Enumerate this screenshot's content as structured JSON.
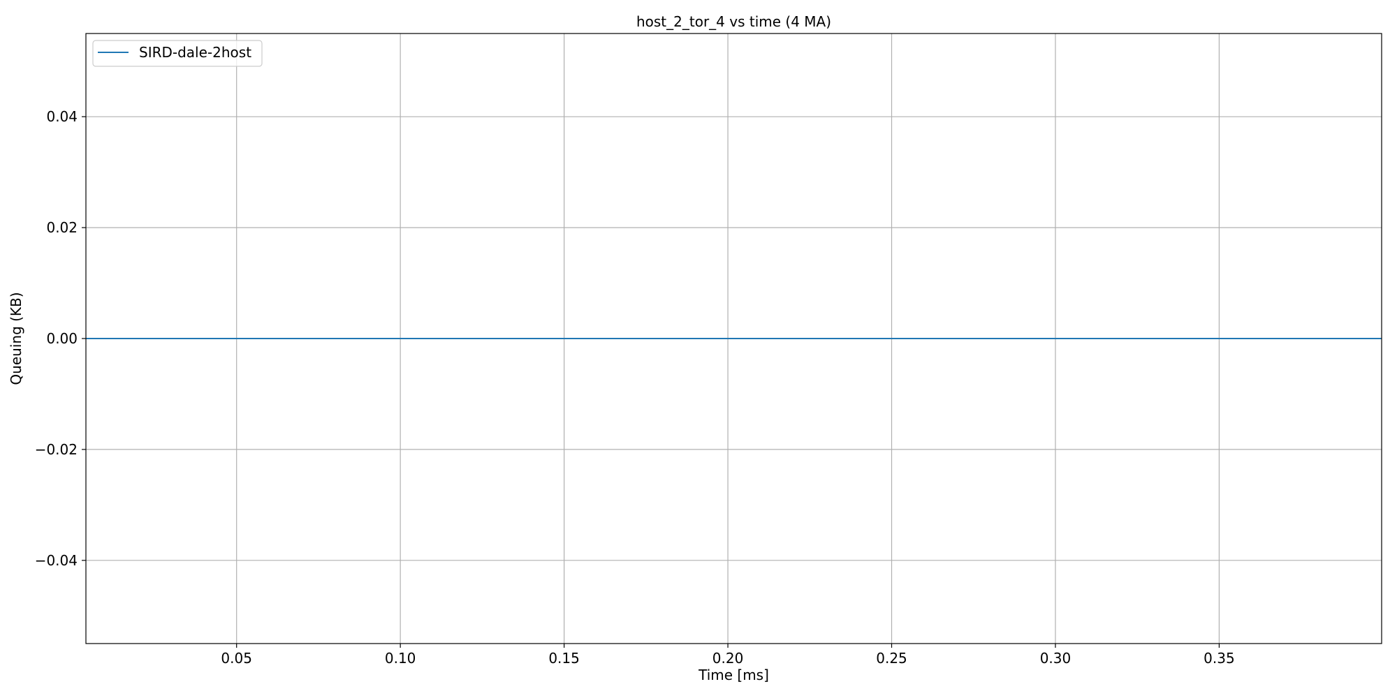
{
  "chart_data": {
    "type": "line",
    "title": "host_2_tor_4 vs time (4 MA)",
    "xlabel": "Time [ms]",
    "ylabel": "Queuing (KB)",
    "xlim": [
      0.004,
      0.3996
    ],
    "ylim": [
      -0.055,
      0.055
    ],
    "x_ticks": [
      {
        "value": 0.05,
        "label": "0.05"
      },
      {
        "value": 0.1,
        "label": "0.10"
      },
      {
        "value": 0.15,
        "label": "0.15"
      },
      {
        "value": 0.2,
        "label": "0.20"
      },
      {
        "value": 0.25,
        "label": "0.25"
      },
      {
        "value": 0.3,
        "label": "0.30"
      },
      {
        "value": 0.35,
        "label": "0.35"
      }
    ],
    "y_ticks": [
      {
        "value": 0.04,
        "label": "0.04"
      },
      {
        "value": 0.02,
        "label": "0.02"
      },
      {
        "value": 0.0,
        "label": "0.00"
      },
      {
        "value": -0.02,
        "label": "−0.02"
      },
      {
        "value": -0.04,
        "label": "−0.04"
      }
    ],
    "grid": true,
    "legend": {
      "placement": "upper left"
    },
    "series": [
      {
        "name": "SIRD-dale-2host",
        "color": "#1f77b4",
        "x": [
          0.004,
          0.05,
          0.1,
          0.15,
          0.2,
          0.25,
          0.3,
          0.35,
          0.3996
        ],
        "y": [
          0,
          0,
          0,
          0,
          0,
          0,
          0,
          0,
          0
        ]
      }
    ]
  }
}
